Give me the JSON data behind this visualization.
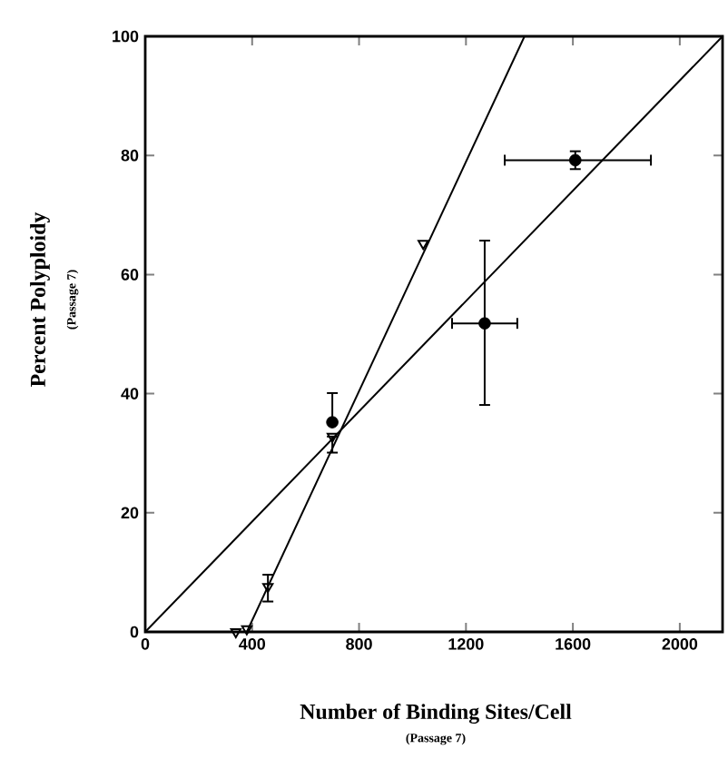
{
  "chart_data": {
    "type": "scatter",
    "xlabel": "Number of Binding Sites/Cell",
    "ylabel": "Percent Polyploidy",
    "annotations": [
      "(Passage 7)",
      "(Passage 7)"
    ],
    "xlim": [
      0,
      2160
    ],
    "ylim": [
      0,
      100
    ],
    "xticks": [
      0,
      400,
      800,
      1200,
      1600,
      2000
    ],
    "yticks": [
      0,
      20,
      40,
      60,
      80,
      100
    ],
    "grid": false,
    "series": [
      {
        "marker": "circle",
        "color": "#000000",
        "x": [
          700,
          1270,
          1609
        ],
        "values": [
          35.2,
          51.8,
          79.2
        ],
        "errors": [
          [
            35.2,
            40.1
          ],
          [
            38.1,
            65.7
          ],
          [
            77.7,
            80.7
          ]
        ],
        "xerrors": [
          null,
          [
            1148,
            1392
          ],
          [
            1345,
            1892
          ]
        ]
      },
      {
        "marker": "triangle",
        "color": "#000000",
        "x": [
          339,
          380,
          459,
          700,
          1040
        ],
        "values": [
          0,
          0.5,
          7.6,
          32.8,
          65.2
        ],
        "errors": [
          null,
          null,
          [
            5.1,
            9.6
          ],
          [
            30.1,
            32.8
          ],
          null
        ]
      },
      {
        "type": "line",
        "color": "#000000",
        "x": [
          0,
          2160
        ],
        "values": [
          0,
          100
        ]
      },
      {
        "type": "line",
        "color": "#000000",
        "x": [
          380,
          1419
        ],
        "values": [
          0,
          100
        ]
      }
    ]
  }
}
